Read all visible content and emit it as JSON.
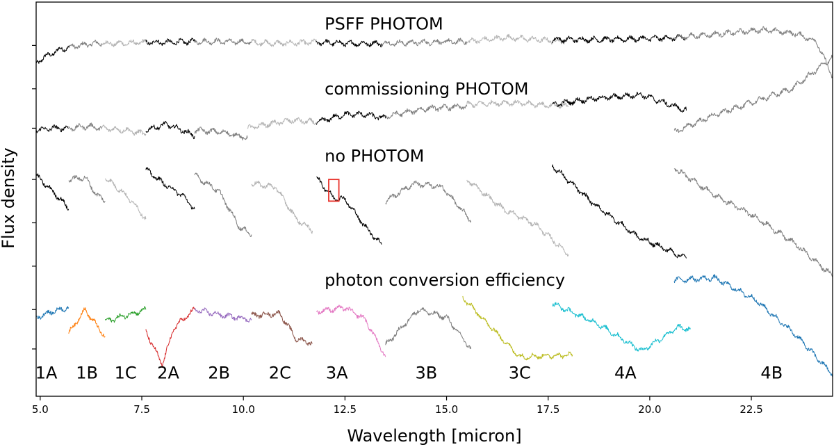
{
  "chart_data": {
    "type": "line",
    "title": "",
    "xlabel": "Wavelength [micron]",
    "ylabel": "Flux density",
    "xlim": [
      4.9,
      24.5
    ],
    "ylim": [
      0,
      10
    ],
    "x_ticks": [
      5.0,
      7.5,
      10.0,
      12.5,
      15.0,
      17.5,
      20.0,
      22.5
    ],
    "x_tick_labels": [
      "5.0",
      "7.5",
      "10.0",
      "12.5",
      "15.0",
      "17.5",
      "20.0",
      "22.5"
    ],
    "y_tick_values": [
      1.2,
      2.2,
      3.3,
      4.4,
      5.5,
      6.8,
      7.8,
      8.9
    ],
    "y_tick_labels_shown": false,
    "annotations": [
      {
        "text": "PSFF PHOTOM",
        "x": 12.0,
        "y": 9.3
      },
      {
        "text": "commissioning PHOTOM",
        "x": 12.0,
        "y": 7.65
      },
      {
        "text": "no PHOTOM",
        "x": 12.0,
        "y": 5.95
      },
      {
        "text": "photon conversion efficiency",
        "x": 12.0,
        "y": 2.8
      }
    ],
    "band_labels": [
      {
        "text": "1A",
        "x": 5.15
      },
      {
        "text": "1B",
        "x": 6.15
      },
      {
        "text": "1C",
        "x": 7.1
      },
      {
        "text": "2A",
        "x": 8.15
      },
      {
        "text": "2B",
        "x": 9.4
      },
      {
        "text": "2C",
        "x": 10.9
      },
      {
        "text": "3A",
        "x": 12.3
      },
      {
        "text": "3B",
        "x": 14.5
      },
      {
        "text": "3C",
        "x": 16.8
      },
      {
        "text": "4A",
        "x": 19.4
      },
      {
        "text": "4B",
        "x": 23.0
      }
    ],
    "band_label_y": 0.45,
    "highlight_box": {
      "x0": 12.1,
      "x1": 12.35,
      "y0": 4.95,
      "y1": 5.5,
      "color": "#e8322b"
    },
    "series": [
      {
        "name": "PSFF PHOTOM",
        "segments": [
          {
            "band": "1A",
            "color": "#000000",
            "points": [
              [
                4.9,
                8.45
              ],
              [
                5.1,
                8.6
              ],
              [
                5.3,
                8.7
              ],
              [
                5.5,
                8.8
              ],
              [
                5.7,
                8.85
              ]
            ]
          },
          {
            "band": "1B",
            "color": "#7f7f7f",
            "points": [
              [
                5.7,
                8.85
              ],
              [
                6.0,
                8.9
              ],
              [
                6.3,
                8.95
              ],
              [
                6.5,
                8.95
              ]
            ]
          },
          {
            "band": "1C",
            "color": "#b4b4b4",
            "points": [
              [
                6.5,
                8.95
              ],
              [
                7.0,
                8.95
              ],
              [
                7.6,
                8.98
              ]
            ]
          },
          {
            "band": "2A",
            "color": "#000000",
            "points": [
              [
                7.6,
                8.98
              ],
              [
                8.2,
                8.98
              ],
              [
                8.8,
                9.0
              ]
            ]
          },
          {
            "band": "2B",
            "color": "#7f7f7f",
            "points": [
              [
                8.8,
                9.0
              ],
              [
                9.5,
                9.0
              ],
              [
                10.2,
                8.98
              ]
            ]
          },
          {
            "band": "2C",
            "color": "#b4b4b4",
            "points": [
              [
                10.2,
                8.98
              ],
              [
                10.8,
                8.95
              ],
              [
                11.8,
                8.98
              ]
            ]
          },
          {
            "band": "3A",
            "color": "#000000",
            "points": [
              [
                11.8,
                8.98
              ],
              [
                12.6,
                8.95
              ],
              [
                13.4,
                8.95
              ]
            ]
          },
          {
            "band": "3B",
            "color": "#7f7f7f",
            "points": [
              [
                13.4,
                8.95
              ],
              [
                14.5,
                8.98
              ],
              [
                15.5,
                9.0
              ]
            ]
          },
          {
            "band": "3C",
            "color": "#b4b4b4",
            "points": [
              [
                15.5,
                9.0
              ],
              [
                16.5,
                9.1
              ],
              [
                17.9,
                9.0
              ]
            ]
          },
          {
            "band": "4A",
            "color": "#000000",
            "points": [
              [
                17.6,
                9.05
              ],
              [
                19.0,
                9.05
              ],
              [
                20.9,
                9.1
              ]
            ]
          },
          {
            "band": "4B",
            "color": "#7f7f7f",
            "points": [
              [
                20.6,
                9.1
              ],
              [
                21.8,
                9.2
              ],
              [
                22.8,
                9.3
              ],
              [
                23.6,
                9.2
              ],
              [
                24.1,
                9.0
              ],
              [
                24.5,
                8.1
              ]
            ]
          }
        ]
      },
      {
        "name": "commissioning PHOTOM",
        "segments": [
          {
            "band": "1A",
            "color": "#000000",
            "points": [
              [
                4.9,
                6.75
              ],
              [
                5.3,
                6.8
              ],
              [
                5.7,
                6.8
              ]
            ]
          },
          {
            "band": "1B",
            "color": "#7f7f7f",
            "points": [
              [
                5.7,
                6.8
              ],
              [
                6.2,
                6.85
              ],
              [
                6.5,
                6.8
              ]
            ]
          },
          {
            "band": "1C",
            "color": "#b4b4b4",
            "points": [
              [
                6.5,
                6.8
              ],
              [
                7.1,
                6.75
              ],
              [
                7.6,
                6.65
              ]
            ]
          },
          {
            "band": "2A",
            "color": "#000000",
            "points": [
              [
                7.6,
                6.75
              ],
              [
                8.1,
                6.9
              ],
              [
                8.5,
                6.75
              ],
              [
                8.8,
                6.6
              ]
            ]
          },
          {
            "band": "2B",
            "color": "#7f7f7f",
            "points": [
              [
                8.8,
                6.75
              ],
              [
                9.5,
                6.7
              ],
              [
                10.1,
                6.55
              ]
            ]
          },
          {
            "band": "2C",
            "color": "#b4b4b4",
            "points": [
              [
                10.1,
                6.8
              ],
              [
                10.6,
                6.9
              ],
              [
                11.2,
                7.0
              ],
              [
                11.8,
                6.95
              ]
            ]
          },
          {
            "band": "3A",
            "color": "#000000",
            "points": [
              [
                11.8,
                6.95
              ],
              [
                12.5,
                7.15
              ],
              [
                13.0,
                7.15
              ],
              [
                13.5,
                7.05
              ]
            ]
          },
          {
            "band": "3B",
            "color": "#7f7f7f",
            "points": [
              [
                13.5,
                7.1
              ],
              [
                14.5,
                7.3
              ],
              [
                15.5,
                7.35
              ]
            ]
          },
          {
            "band": "3C",
            "color": "#b4b4b4",
            "points": [
              [
                15.5,
                7.4
              ],
              [
                16.5,
                7.45
              ],
              [
                18.0,
                7.35
              ]
            ]
          },
          {
            "band": "4A",
            "color": "#000000",
            "points": [
              [
                17.6,
                7.4
              ],
              [
                18.6,
                7.55
              ],
              [
                19.8,
                7.65
              ],
              [
                20.9,
                7.25
              ]
            ]
          },
          {
            "band": "4B",
            "color": "#7f7f7f",
            "points": [
              [
                20.6,
                6.7
              ],
              [
                21.5,
                7.1
              ],
              [
                22.5,
                7.45
              ],
              [
                23.5,
                7.8
              ],
              [
                24.5,
                8.6
              ]
            ]
          }
        ]
      },
      {
        "name": "no PHOTOM",
        "segments": [
          {
            "band": "1A",
            "color": "#000000",
            "points": [
              [
                4.9,
                5.6
              ],
              [
                5.2,
                5.3
              ],
              [
                5.5,
                5.0
              ],
              [
                5.7,
                4.75
              ]
            ]
          },
          {
            "band": "1B",
            "color": "#7f7f7f",
            "points": [
              [
                5.7,
                5.5
              ],
              [
                6.1,
                5.55
              ],
              [
                6.4,
                5.1
              ],
              [
                6.6,
                4.95
              ]
            ]
          },
          {
            "band": "1C",
            "color": "#b4b4b4",
            "points": [
              [
                6.6,
                5.55
              ],
              [
                7.0,
                5.2
              ],
              [
                7.3,
                4.9
              ],
              [
                7.6,
                4.5
              ]
            ]
          },
          {
            "band": "2A",
            "color": "#000000",
            "points": [
              [
                7.6,
                5.75
              ],
              [
                8.1,
                5.35
              ],
              [
                8.5,
                5.1
              ],
              [
                8.8,
                4.75
              ]
            ]
          },
          {
            "band": "2B",
            "color": "#7f7f7f",
            "points": [
              [
                8.8,
                5.6
              ],
              [
                9.4,
                5.2
              ],
              [
                9.9,
                4.3
              ],
              [
                10.2,
                4.1
              ]
            ]
          },
          {
            "band": "2C",
            "color": "#b4b4b4",
            "points": [
              [
                10.2,
                5.4
              ],
              [
                10.8,
                5.3
              ],
              [
                11.3,
                4.5
              ],
              [
                11.7,
                4.2
              ]
            ]
          },
          {
            "band": "3A",
            "color": "#000000",
            "points": [
              [
                11.8,
                5.55
              ],
              [
                12.2,
                5.05
              ],
              [
                12.5,
                5.0
              ],
              [
                13.0,
                4.3
              ],
              [
                13.4,
                3.85
              ]
            ]
          },
          {
            "band": "3B",
            "color": "#7f7f7f",
            "points": [
              [
                13.5,
                4.95
              ],
              [
                14.2,
                5.4
              ],
              [
                14.9,
                5.3
              ],
              [
                15.6,
                4.45
              ]
            ]
          },
          {
            "band": "3C",
            "color": "#b4b4b4",
            "points": [
              [
                15.5,
                5.5
              ],
              [
                16.4,
                4.75
              ],
              [
                17.2,
                4.35
              ],
              [
                18.0,
                3.6
              ]
            ]
          },
          {
            "band": "4A",
            "color": "#000000",
            "points": [
              [
                17.6,
                5.85
              ],
              [
                18.6,
                4.9
              ],
              [
                19.7,
                4.05
              ],
              [
                20.9,
                3.5
              ]
            ]
          },
          {
            "band": "4B",
            "color": "#7f7f7f",
            "points": [
              [
                20.6,
                5.8
              ],
              [
                21.6,
                5.1
              ],
              [
                22.6,
                4.55
              ],
              [
                23.6,
                3.85
              ],
              [
                24.5,
                3.05
              ]
            ]
          }
        ]
      },
      {
        "name": "photon conversion efficiency",
        "segments": [
          {
            "band": "1A",
            "color": "#1f77b4",
            "points": [
              [
                4.9,
                2.0
              ],
              [
                5.3,
                2.15
              ],
              [
                5.7,
                2.25
              ]
            ]
          },
          {
            "band": "1B",
            "color": "#ff7f0e",
            "points": [
              [
                5.7,
                1.6
              ],
              [
                6.1,
                2.2
              ],
              [
                6.6,
                1.5
              ]
            ]
          },
          {
            "band": "1C",
            "color": "#2ca02c",
            "points": [
              [
                6.6,
                1.9
              ],
              [
                7.1,
                2.05
              ],
              [
                7.6,
                2.2
              ]
            ]
          },
          {
            "band": "2A",
            "color": "#d62728",
            "points": [
              [
                7.6,
                1.65
              ],
              [
                8.0,
                0.8
              ],
              [
                8.3,
                1.75
              ],
              [
                8.8,
                2.2
              ]
            ]
          },
          {
            "band": "2B",
            "color": "#9467bd",
            "points": [
              [
                8.8,
                2.2
              ],
              [
                9.5,
                2.05
              ],
              [
                10.2,
                1.95
              ]
            ]
          },
          {
            "band": "2C",
            "color": "#8c564b",
            "points": [
              [
                10.2,
                2.05
              ],
              [
                10.9,
                2.1
              ],
              [
                11.3,
                1.45
              ],
              [
                11.7,
                1.35
              ]
            ]
          },
          {
            "band": "3A",
            "color": "#e377c2",
            "points": [
              [
                11.8,
                2.15
              ],
              [
                12.5,
                2.25
              ],
              [
                13.0,
                1.95
              ],
              [
                13.5,
                1.0
              ]
            ]
          },
          {
            "band": "3B",
            "color": "#7f7f7f",
            "points": [
              [
                13.5,
                1.3
              ],
              [
                14.3,
                2.2
              ],
              [
                15.0,
                2.0
              ],
              [
                15.6,
                1.2
              ]
            ]
          },
          {
            "band": "3C",
            "color": "#bcbd22",
            "points": [
              [
                15.4,
                2.5
              ],
              [
                16.0,
                1.85
              ],
              [
                16.8,
                1.0
              ],
              [
                18.1,
                1.05
              ]
            ]
          },
          {
            "band": "4A",
            "color": "#17becf",
            "points": [
              [
                17.6,
                2.35
              ],
              [
                18.7,
                1.85
              ],
              [
                19.8,
                1.15
              ],
              [
                20.7,
                1.75
              ],
              [
                21.0,
                1.7
              ]
            ]
          },
          {
            "band": "4B",
            "color": "#1f77b4",
            "points": [
              [
                20.6,
                2.95
              ],
              [
                21.6,
                3.0
              ],
              [
                22.6,
                2.45
              ],
              [
                23.6,
                1.55
              ],
              [
                24.5,
                0.55
              ]
            ]
          }
        ]
      }
    ]
  }
}
